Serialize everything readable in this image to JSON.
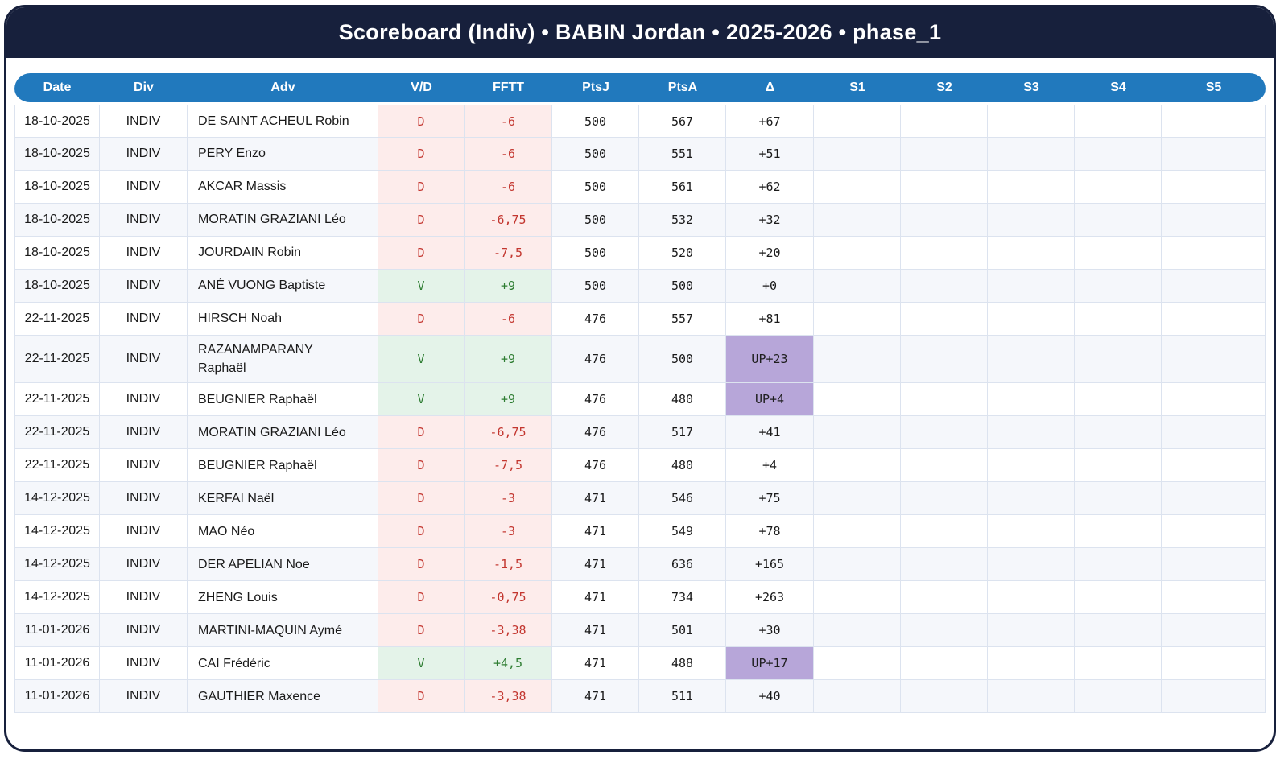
{
  "title": "Scoreboard (Indiv) • BABIN Jordan • 2025-2026 • phase_1",
  "colors": {
    "frame_navy": "#17203c",
    "header_blue": "#2179bd",
    "loss_bg": "#fdeceb",
    "loss_text": "#c3362f",
    "win_bg": "#e4f3e9",
    "win_text": "#2e7d32",
    "promotion_bg": "#b7a6d9",
    "row_alt_bg": "#f5f7fb"
  },
  "table": {
    "columns": [
      {
        "key": "date",
        "label": "Date"
      },
      {
        "key": "div",
        "label": "Div"
      },
      {
        "key": "adv",
        "label": "Adv"
      },
      {
        "key": "vd",
        "label": "V/D"
      },
      {
        "key": "fftt",
        "label": "FFTT"
      },
      {
        "key": "ptsj",
        "label": "PtsJ"
      },
      {
        "key": "ptsa",
        "label": "PtsA"
      },
      {
        "key": "delta",
        "label": "Δ"
      },
      {
        "key": "s1",
        "label": "S1"
      },
      {
        "key": "s2",
        "label": "S2"
      },
      {
        "key": "s3",
        "label": "S3"
      },
      {
        "key": "s4",
        "label": "S4"
      },
      {
        "key": "s5",
        "label": "S5"
      }
    ],
    "rows": [
      {
        "date": "18-10-2025",
        "div": "INDIV",
        "adv": "DE SAINT ACHEUL Robin",
        "vd": "D",
        "fftt": "-6",
        "ptsj": "500",
        "ptsa": "567",
        "delta": "+67",
        "s1": "",
        "s2": "",
        "s3": "",
        "s4": "",
        "s5": ""
      },
      {
        "date": "18-10-2025",
        "div": "INDIV",
        "adv": "PERY Enzo",
        "vd": "D",
        "fftt": "-6",
        "ptsj": "500",
        "ptsa": "551",
        "delta": "+51",
        "s1": "",
        "s2": "",
        "s3": "",
        "s4": "",
        "s5": ""
      },
      {
        "date": "18-10-2025",
        "div": "INDIV",
        "adv": "AKCAR Massis",
        "vd": "D",
        "fftt": "-6",
        "ptsj": "500",
        "ptsa": "561",
        "delta": "+62",
        "s1": "",
        "s2": "",
        "s3": "",
        "s4": "",
        "s5": ""
      },
      {
        "date": "18-10-2025",
        "div": "INDIV",
        "adv": "MORATIN GRAZIANI Léo",
        "vd": "D",
        "fftt": "-6,75",
        "ptsj": "500",
        "ptsa": "532",
        "delta": "+32",
        "s1": "",
        "s2": "",
        "s3": "",
        "s4": "",
        "s5": ""
      },
      {
        "date": "18-10-2025",
        "div": "INDIV",
        "adv": "JOURDAIN Robin",
        "vd": "D",
        "fftt": "-7,5",
        "ptsj": "500",
        "ptsa": "520",
        "delta": "+20",
        "s1": "",
        "s2": "",
        "s3": "",
        "s4": "",
        "s5": ""
      },
      {
        "date": "18-10-2025",
        "div": "INDIV",
        "adv": "ANÉ VUONG Baptiste",
        "vd": "V",
        "fftt": "+9",
        "ptsj": "500",
        "ptsa": "500",
        "delta": "+0",
        "s1": "",
        "s2": "",
        "s3": "",
        "s4": "",
        "s5": ""
      },
      {
        "date": "22-11-2025",
        "div": "INDIV",
        "adv": "HIRSCH Noah",
        "vd": "D",
        "fftt": "-6",
        "ptsj": "476",
        "ptsa": "557",
        "delta": "+81",
        "s1": "",
        "s2": "",
        "s3": "",
        "s4": "",
        "s5": ""
      },
      {
        "date": "22-11-2025",
        "div": "INDIV",
        "adv": "RAZANAMPARANY Raphaël",
        "vd": "V",
        "fftt": "+9",
        "ptsj": "476",
        "ptsa": "500",
        "delta": "UP+23",
        "s1": "",
        "s2": "",
        "s3": "",
        "s4": "",
        "s5": ""
      },
      {
        "date": "22-11-2025",
        "div": "INDIV",
        "adv": "BEUGNIER Raphaël",
        "vd": "V",
        "fftt": "+9",
        "ptsj": "476",
        "ptsa": "480",
        "delta": "UP+4",
        "s1": "",
        "s2": "",
        "s3": "",
        "s4": "",
        "s5": ""
      },
      {
        "date": "22-11-2025",
        "div": "INDIV",
        "adv": "MORATIN GRAZIANI Léo",
        "vd": "D",
        "fftt": "-6,75",
        "ptsj": "476",
        "ptsa": "517",
        "delta": "+41",
        "s1": "",
        "s2": "",
        "s3": "",
        "s4": "",
        "s5": ""
      },
      {
        "date": "22-11-2025",
        "div": "INDIV",
        "adv": "BEUGNIER Raphaël",
        "vd": "D",
        "fftt": "-7,5",
        "ptsj": "476",
        "ptsa": "480",
        "delta": "+4",
        "s1": "",
        "s2": "",
        "s3": "",
        "s4": "",
        "s5": ""
      },
      {
        "date": "14-12-2025",
        "div": "INDIV",
        "adv": "KERFAI Naël",
        "vd": "D",
        "fftt": "-3",
        "ptsj": "471",
        "ptsa": "546",
        "delta": "+75",
        "s1": "",
        "s2": "",
        "s3": "",
        "s4": "",
        "s5": ""
      },
      {
        "date": "14-12-2025",
        "div": "INDIV",
        "adv": "MAO Néo",
        "vd": "D",
        "fftt": "-3",
        "ptsj": "471",
        "ptsa": "549",
        "delta": "+78",
        "s1": "",
        "s2": "",
        "s3": "",
        "s4": "",
        "s5": ""
      },
      {
        "date": "14-12-2025",
        "div": "INDIV",
        "adv": "DER APELIAN Noe",
        "vd": "D",
        "fftt": "-1,5",
        "ptsj": "471",
        "ptsa": "636",
        "delta": "+165",
        "s1": "",
        "s2": "",
        "s3": "",
        "s4": "",
        "s5": ""
      },
      {
        "date": "14-12-2025",
        "div": "INDIV",
        "adv": "ZHENG Louis",
        "vd": "D",
        "fftt": "-0,75",
        "ptsj": "471",
        "ptsa": "734",
        "delta": "+263",
        "s1": "",
        "s2": "",
        "s3": "",
        "s4": "",
        "s5": ""
      },
      {
        "date": "11-01-2026",
        "div": "INDIV",
        "adv": "MARTINI-MAQUIN Aymé",
        "vd": "D",
        "fftt": "-3,38",
        "ptsj": "471",
        "ptsa": "501",
        "delta": "+30",
        "s1": "",
        "s2": "",
        "s3": "",
        "s4": "",
        "s5": ""
      },
      {
        "date": "11-01-2026",
        "div": "INDIV",
        "adv": "CAI Frédéric",
        "vd": "V",
        "fftt": "+4,5",
        "ptsj": "471",
        "ptsa": "488",
        "delta": "UP+17",
        "s1": "",
        "s2": "",
        "s3": "",
        "s4": "",
        "s5": ""
      },
      {
        "date": "11-01-2026",
        "div": "INDIV",
        "adv": "GAUTHIER Maxence",
        "vd": "D",
        "fftt": "-3,38",
        "ptsj": "471",
        "ptsa": "511",
        "delta": "+40",
        "s1": "",
        "s2": "",
        "s3": "",
        "s4": "",
        "s5": ""
      }
    ]
  }
}
